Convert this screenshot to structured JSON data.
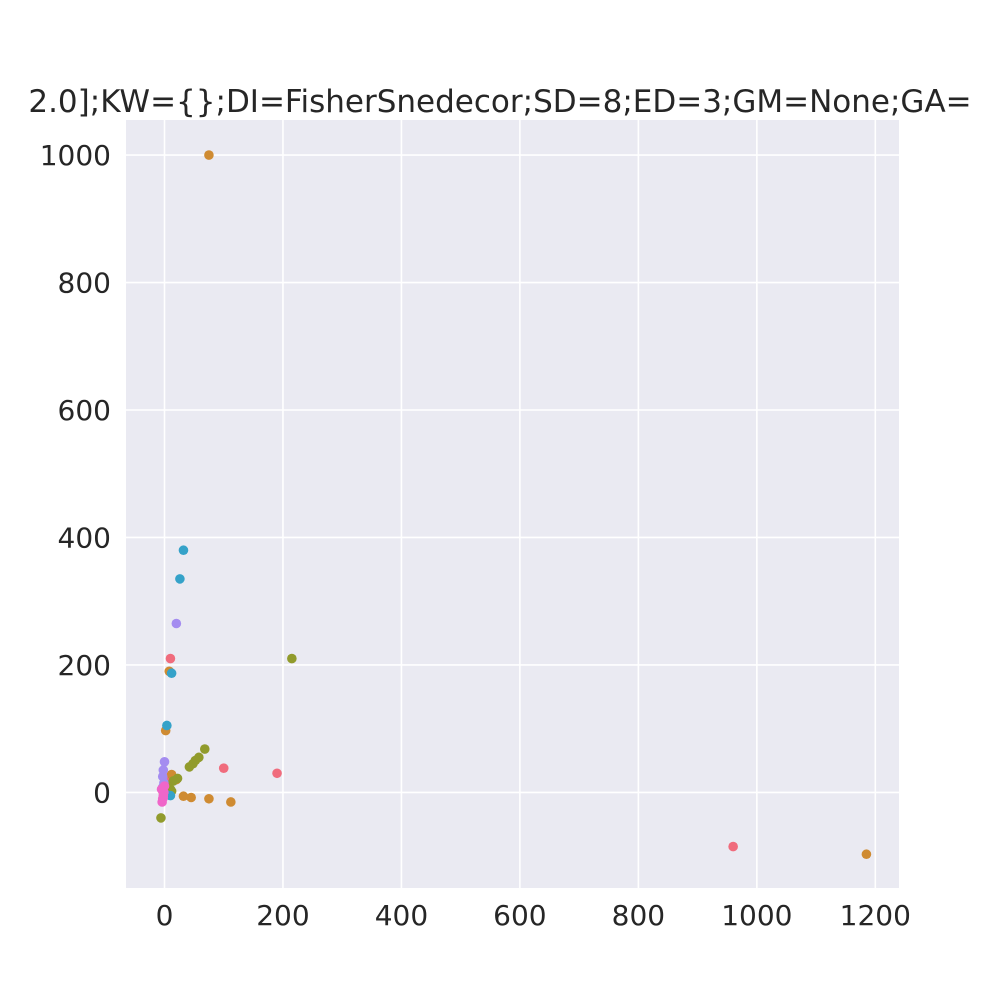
{
  "chart_data": {
    "type": "scatter",
    "title": "2.0];KW={};DI=FisherSnedecor;SD=8;ED=3;GM=None;GA=",
    "xlabel": "",
    "ylabel": "",
    "xlim": [
      -65,
      1240
    ],
    "ylim": [
      -150,
      1055
    ],
    "x_ticks": [
      0,
      200,
      400,
      600,
      800,
      1000,
      1200
    ],
    "y_ticks": [
      0,
      200,
      400,
      600,
      800,
      1000
    ],
    "grid": true,
    "legend": "none",
    "background": "#eaeaf2",
    "grid_color": "#ffffff",
    "series": [
      {
        "color": "#f06c7d",
        "points": [
          [
            960,
            -85
          ],
          [
            190,
            30
          ],
          [
            100,
            38
          ],
          [
            10,
            210
          ],
          [
            10,
            25
          ],
          [
            -2,
            5
          ]
        ]
      },
      {
        "color": "#cf8b32",
        "points": [
          [
            75,
            1000
          ],
          [
            1185,
            -97
          ],
          [
            112,
            -15
          ],
          [
            75,
            -10
          ],
          [
            45,
            -8
          ],
          [
            32,
            -6
          ],
          [
            2,
            97
          ],
          [
            8,
            190
          ],
          [
            12,
            28
          ],
          [
            20,
            20
          ],
          [
            -2,
            0
          ],
          [
            3,
            8
          ]
        ]
      },
      {
        "color": "#919b2c",
        "points": [
          [
            215,
            210
          ],
          [
            68,
            68
          ],
          [
            58,
            55
          ],
          [
            52,
            50
          ],
          [
            48,
            45
          ],
          [
            42,
            40
          ],
          [
            22,
            22
          ],
          [
            15,
            18
          ],
          [
            10,
            5
          ],
          [
            12,
            2
          ],
          [
            -6,
            -40
          ],
          [
            3,
            12
          ]
        ]
      },
      {
        "color": "#35a2c9",
        "points": [
          [
            32,
            380
          ],
          [
            26,
            335
          ],
          [
            12,
            187
          ],
          [
            4,
            105
          ],
          [
            10,
            -5
          ],
          [
            2,
            -3
          ],
          [
            -2,
            2
          ]
        ]
      },
      {
        "color": "#a48cf0",
        "points": [
          [
            20,
            265
          ],
          [
            0,
            48
          ],
          [
            -2,
            35
          ],
          [
            -3,
            25
          ],
          [
            -1,
            15
          ],
          [
            -3,
            8
          ]
        ]
      },
      {
        "color": "#f066c9",
        "points": [
          [
            -4,
            -15
          ],
          [
            -3,
            -10
          ],
          [
            -2,
            -5
          ],
          [
            -1,
            0
          ],
          [
            -5,
            5
          ],
          [
            0,
            10
          ],
          [
            -3,
            3
          ],
          [
            -2,
            -8
          ]
        ]
      }
    ]
  }
}
